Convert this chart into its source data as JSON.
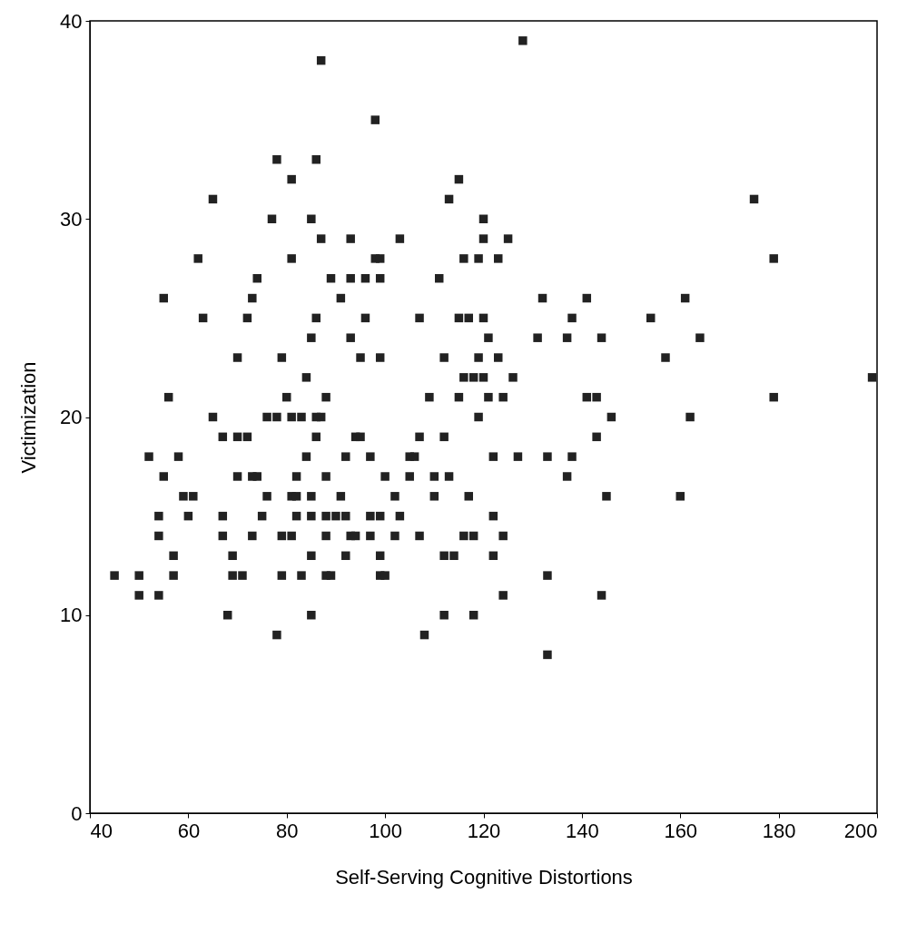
{
  "chart_data": {
    "type": "scatter",
    "xlabel": "Self-Serving Cognitive Distortions",
    "ylabel": "Victimization",
    "xlim": [
      40,
      200
    ],
    "ylim": [
      0,
      40
    ],
    "xticks": [
      40,
      60,
      80,
      100,
      120,
      140,
      160,
      180,
      200
    ],
    "yticks": [
      0,
      10,
      20,
      30,
      40
    ],
    "grid": false,
    "marker": "square",
    "series": [
      {
        "color": "#222222",
        "x": [
          128,
          87,
          98,
          78,
          86,
          81,
          115,
          65,
          113,
          175,
          77,
          85,
          120,
          87,
          93,
          103,
          120,
          125,
          62,
          81,
          98,
          99,
          116,
          119,
          123,
          179,
          74,
          89,
          93,
          96,
          99,
          111,
          55,
          73,
          91,
          132,
          141,
          161,
          63,
          72,
          86,
          96,
          107,
          115,
          117,
          120,
          138,
          154,
          85,
          93,
          121,
          131,
          137,
          144,
          164,
          70,
          79,
          95,
          99,
          112,
          119,
          123,
          157,
          84,
          116,
          118,
          120,
          126,
          199,
          56,
          80,
          88,
          109,
          115,
          121,
          124,
          141,
          143,
          179,
          65,
          76,
          78,
          81,
          83,
          86,
          87,
          119,
          146,
          162,
          67,
          70,
          72,
          86,
          94,
          95,
          107,
          112,
          143,
          52,
          58,
          84,
          92,
          97,
          105,
          106,
          122,
          127,
          133,
          138,
          55,
          70,
          73,
          74,
          82,
          88,
          100,
          105,
          110,
          113,
          137,
          59,
          61,
          76,
          81,
          82,
          85,
          91,
          102,
          110,
          117,
          145,
          160,
          54,
          60,
          67,
          75,
          82,
          85,
          88,
          90,
          92,
          97,
          99,
          103,
          122,
          54,
          67,
          73,
          79,
          81,
          88,
          93,
          94,
          97,
          102,
          107,
          116,
          118,
          124,
          57,
          69,
          85,
          92,
          99,
          112,
          114,
          122,
          45,
          50,
          57,
          69,
          71,
          79,
          83,
          88,
          89,
          99,
          100,
          133,
          50,
          54,
          124,
          144,
          68,
          85,
          112,
          118,
          78,
          108,
          133
        ],
        "values": [
          39,
          38,
          35,
          33,
          33,
          32,
          32,
          31,
          31,
          31,
          30,
          30,
          30,
          29,
          29,
          29,
          29,
          29,
          28,
          28,
          28,
          28,
          28,
          28,
          28,
          28,
          27,
          27,
          27,
          27,
          27,
          27,
          26,
          26,
          26,
          26,
          26,
          26,
          25,
          25,
          25,
          25,
          25,
          25,
          25,
          25,
          25,
          25,
          24,
          24,
          24,
          24,
          24,
          24,
          24,
          23,
          23,
          23,
          23,
          23,
          23,
          23,
          23,
          22,
          22,
          22,
          22,
          22,
          22,
          21,
          21,
          21,
          21,
          21,
          21,
          21,
          21,
          21,
          21,
          20,
          20,
          20,
          20,
          20,
          20,
          20,
          20,
          20,
          20,
          19,
          19,
          19,
          19,
          19,
          19,
          19,
          19,
          19,
          18,
          18,
          18,
          18,
          18,
          18,
          18,
          18,
          18,
          18,
          18,
          17,
          17,
          17,
          17,
          17,
          17,
          17,
          17,
          17,
          17,
          17,
          16,
          16,
          16,
          16,
          16,
          16,
          16,
          16,
          16,
          16,
          16,
          16,
          15,
          15,
          15,
          15,
          15,
          15,
          15,
          15,
          15,
          15,
          15,
          15,
          15,
          14,
          14,
          14,
          14,
          14,
          14,
          14,
          14,
          14,
          14,
          14,
          14,
          14,
          14,
          13,
          13,
          13,
          13,
          13,
          13,
          13,
          13,
          12,
          12,
          12,
          12,
          12,
          12,
          12,
          12,
          12,
          12,
          12,
          12,
          11,
          11,
          11,
          11,
          10,
          10,
          10,
          10,
          9,
          9,
          8
        ]
      }
    ]
  }
}
